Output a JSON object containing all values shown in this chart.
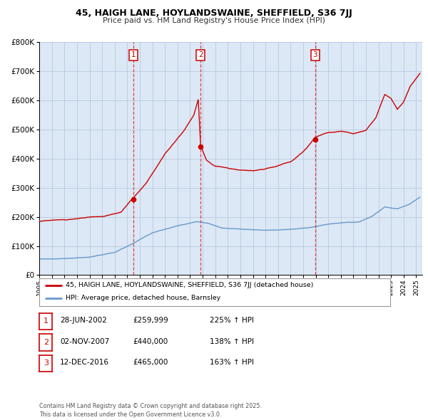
{
  "title_line1": "45, HAIGH LANE, HOYLANDSWAINE, SHEFFIELD, S36 7JJ",
  "title_line2": "Price paid vs. HM Land Registry's House Price Index (HPI)",
  "background_color": "#dce8f5",
  "fig_bg_color": "#ffffff",
  "grid_color": "#b8c8e0",
  "red_color": "#cc0000",
  "blue_color": "#6699cc",
  "dashed_color": "#dd3333",
  "legend_red_label": "45, HAIGH LANE, HOYLANDSWAINE, SHEFFIELD, S36 7JJ (detached house)",
  "legend_blue_label": "HPI: Average price, detached house, Barnsley",
  "table_rows": [
    {
      "num": "1",
      "date": "28-JUN-2002",
      "price": "£259,999",
      "change": "225% ↑ HPI"
    },
    {
      "num": "2",
      "date": "02-NOV-2007",
      "price": "£440,000",
      "change": "138% ↑ HPI"
    },
    {
      "num": "3",
      "date": "12-DEC-2016",
      "price": "£465,000",
      "change": "163% ↑ HPI"
    }
  ],
  "footer_text": "Contains HM Land Registry data © Crown copyright and database right 2025.\nThis data is licensed under the Open Government Licence v3.0.",
  "ytick_vals": [
    0,
    100000,
    200000,
    300000,
    400000,
    500000,
    600000,
    700000,
    800000
  ],
  "ytick_labels": [
    "£0",
    "£100K",
    "£200K",
    "£300K",
    "£400K",
    "£500K",
    "£600K",
    "£700K",
    "£800K"
  ],
  "ylim": [
    0,
    800000
  ],
  "sale1_date_num": 2002.49,
  "sale2_date_num": 2007.84,
  "sale3_date_num": 2016.95,
  "sale1_price": 259999,
  "sale2_price": 440000,
  "sale3_price": 465000
}
